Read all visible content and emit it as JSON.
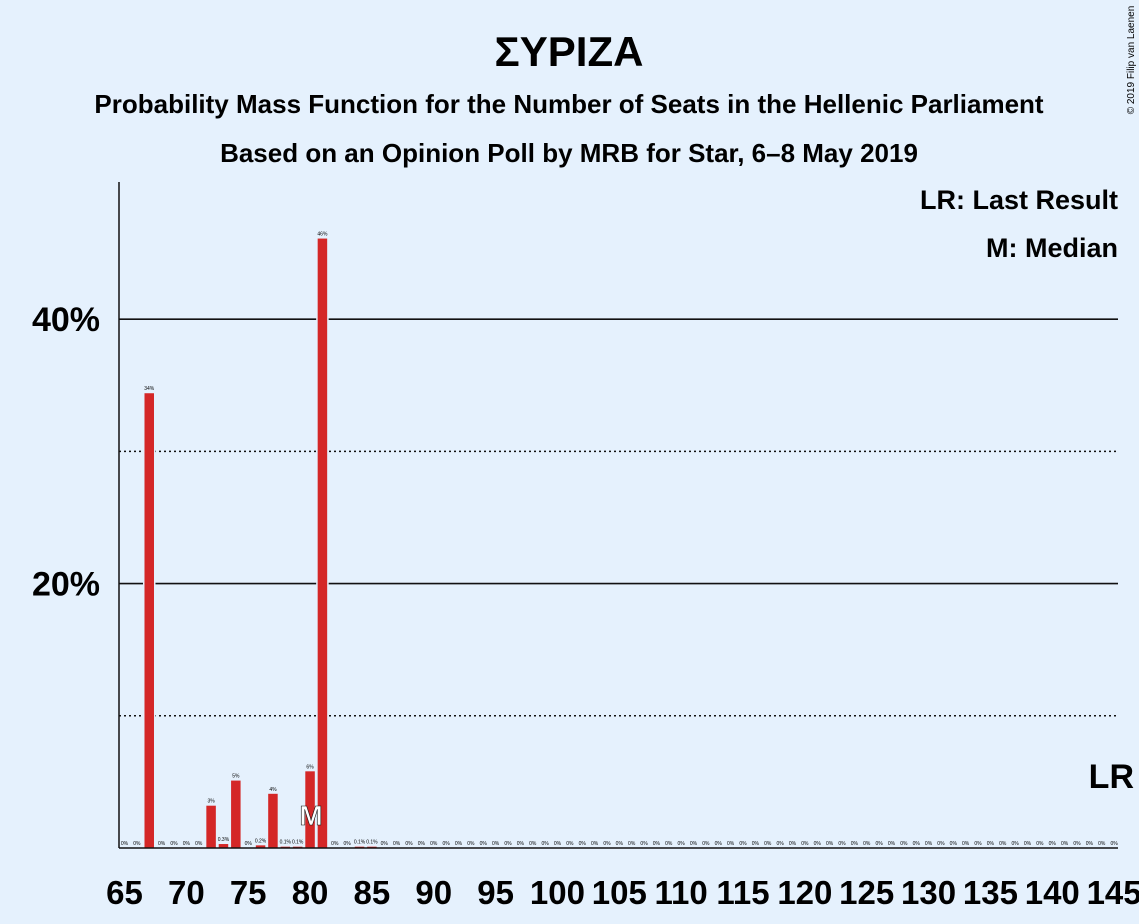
{
  "title": "ΣΥΡΙΖΑ",
  "subtitle1": "Probability Mass Function for the Number of Seats in the Hellenic Parliament",
  "subtitle2": "Based on an Opinion Poll by MRB for Star, 6–8 May 2019",
  "copyright": "© 2019 Filip van Laenen",
  "legend": {
    "lr": "LR: Last Result",
    "m": "M: Median"
  },
  "markers": {
    "last_result_label": "LR",
    "median_label": "M"
  },
  "colors": {
    "bar": "#d42727",
    "background": "#e5f1fd",
    "text": "#111111"
  },
  "chart_data": {
    "type": "bar",
    "xlabel": "",
    "ylabel": "",
    "xlim": [
      65,
      145
    ],
    "ylim": [
      0,
      50
    ],
    "y_ticks_labeled": [
      {
        "value": 20,
        "label": "20%"
      },
      {
        "value": 40,
        "label": "40%"
      }
    ],
    "y_gridlines_solid": [
      20,
      40
    ],
    "y_gridlines_dotted": [
      10,
      30
    ],
    "x_ticks": [
      {
        "value": 65,
        "label": "65"
      },
      {
        "value": 70,
        "label": "70"
      },
      {
        "value": 75,
        "label": "75"
      },
      {
        "value": 80,
        "label": "80"
      },
      {
        "value": 85,
        "label": "85"
      },
      {
        "value": 90,
        "label": "90"
      },
      {
        "value": 95,
        "label": "95"
      },
      {
        "value": 100,
        "label": "100"
      },
      {
        "value": 105,
        "label": "105"
      },
      {
        "value": 110,
        "label": "110"
      },
      {
        "value": 115,
        "label": "115"
      },
      {
        "value": 120,
        "label": "120"
      },
      {
        "value": 125,
        "label": "125"
      },
      {
        "value": 130,
        "label": "130"
      },
      {
        "value": 135,
        "label": "135"
      },
      {
        "value": 140,
        "label": "140"
      },
      {
        "value": 145,
        "label": "145"
      }
    ],
    "median": 80,
    "last_result": 145,
    "bars": [
      {
        "x": 65,
        "value": 0,
        "label": "0%"
      },
      {
        "x": 66,
        "value": 0,
        "label": "0%"
      },
      {
        "x": 67,
        "value": 34.4,
        "label": "34%"
      },
      {
        "x": 68,
        "value": 0,
        "label": "0%"
      },
      {
        "x": 69,
        "value": 0,
        "label": "0%"
      },
      {
        "x": 70,
        "value": 0,
        "label": "0%"
      },
      {
        "x": 71,
        "value": 0,
        "label": "0%"
      },
      {
        "x": 72,
        "value": 3.2,
        "label": "3%"
      },
      {
        "x": 73,
        "value": 0.3,
        "label": "0.3%"
      },
      {
        "x": 74,
        "value": 5.1,
        "label": "5%"
      },
      {
        "x": 75,
        "value": 0,
        "label": "0%"
      },
      {
        "x": 76,
        "value": 0.2,
        "label": "0.2%"
      },
      {
        "x": 77,
        "value": 4.1,
        "label": "4%"
      },
      {
        "x": 78,
        "value": 0.1,
        "label": "0.1%"
      },
      {
        "x": 79,
        "value": 0.1,
        "label": "0.1%"
      },
      {
        "x": 80,
        "value": 5.8,
        "label": "6%"
      },
      {
        "x": 81,
        "value": 46.1,
        "label": "46%"
      },
      {
        "x": 82,
        "value": 0,
        "label": "0%"
      },
      {
        "x": 83,
        "value": 0,
        "label": "0%"
      },
      {
        "x": 84,
        "value": 0.1,
        "label": "0.1%"
      },
      {
        "x": 85,
        "value": 0.1,
        "label": "0.1%"
      },
      {
        "x": 86,
        "value": 0,
        "label": "0%"
      },
      {
        "x": 87,
        "value": 0,
        "label": "0%"
      },
      {
        "x": 88,
        "value": 0,
        "label": "0%"
      },
      {
        "x": 89,
        "value": 0,
        "label": "0%"
      },
      {
        "x": 90,
        "value": 0,
        "label": "0%"
      },
      {
        "x": 91,
        "value": 0,
        "label": "0%"
      },
      {
        "x": 92,
        "value": 0,
        "label": "0%"
      },
      {
        "x": 93,
        "value": 0,
        "label": "0%"
      },
      {
        "x": 94,
        "value": 0,
        "label": "0%"
      },
      {
        "x": 95,
        "value": 0,
        "label": "0%"
      },
      {
        "x": 96,
        "value": 0,
        "label": "0%"
      },
      {
        "x": 97,
        "value": 0,
        "label": "0%"
      },
      {
        "x": 98,
        "value": 0,
        "label": "0%"
      },
      {
        "x": 99,
        "value": 0,
        "label": "0%"
      },
      {
        "x": 100,
        "value": 0,
        "label": "0%"
      },
      {
        "x": 101,
        "value": 0,
        "label": "0%"
      },
      {
        "x": 102,
        "value": 0,
        "label": "0%"
      },
      {
        "x": 103,
        "value": 0,
        "label": "0%"
      },
      {
        "x": 104,
        "value": 0,
        "label": "0%"
      },
      {
        "x": 105,
        "value": 0,
        "label": "0%"
      },
      {
        "x": 106,
        "value": 0,
        "label": "0%"
      },
      {
        "x": 107,
        "value": 0,
        "label": "0%"
      },
      {
        "x": 108,
        "value": 0,
        "label": "0%"
      },
      {
        "x": 109,
        "value": 0,
        "label": "0%"
      },
      {
        "x": 110,
        "value": 0,
        "label": "0%"
      },
      {
        "x": 111,
        "value": 0,
        "label": "0%"
      },
      {
        "x": 112,
        "value": 0,
        "label": "0%"
      },
      {
        "x": 113,
        "value": 0,
        "label": "0%"
      },
      {
        "x": 114,
        "value": 0,
        "label": "0%"
      },
      {
        "x": 115,
        "value": 0,
        "label": "0%"
      },
      {
        "x": 116,
        "value": 0,
        "label": "0%"
      },
      {
        "x": 117,
        "value": 0,
        "label": "0%"
      },
      {
        "x": 118,
        "value": 0,
        "label": "0%"
      },
      {
        "x": 119,
        "value": 0,
        "label": "0%"
      },
      {
        "x": 120,
        "value": 0,
        "label": "0%"
      },
      {
        "x": 121,
        "value": 0,
        "label": "0%"
      },
      {
        "x": 122,
        "value": 0,
        "label": "0%"
      },
      {
        "x": 123,
        "value": 0,
        "label": "0%"
      },
      {
        "x": 124,
        "value": 0,
        "label": "0%"
      },
      {
        "x": 125,
        "value": 0,
        "label": "0%"
      },
      {
        "x": 126,
        "value": 0,
        "label": "0%"
      },
      {
        "x": 127,
        "value": 0,
        "label": "0%"
      },
      {
        "x": 128,
        "value": 0,
        "label": "0%"
      },
      {
        "x": 129,
        "value": 0,
        "label": "0%"
      },
      {
        "x": 130,
        "value": 0,
        "label": "0%"
      },
      {
        "x": 131,
        "value": 0,
        "label": "0%"
      },
      {
        "x": 132,
        "value": 0,
        "label": "0%"
      },
      {
        "x": 133,
        "value": 0,
        "label": "0%"
      },
      {
        "x": 134,
        "value": 0,
        "label": "0%"
      },
      {
        "x": 135,
        "value": 0,
        "label": "0%"
      },
      {
        "x": 136,
        "value": 0,
        "label": "0%"
      },
      {
        "x": 137,
        "value": 0,
        "label": "0%"
      },
      {
        "x": 138,
        "value": 0,
        "label": "0%"
      },
      {
        "x": 139,
        "value": 0,
        "label": "0%"
      },
      {
        "x": 140,
        "value": 0,
        "label": "0%"
      },
      {
        "x": 141,
        "value": 0,
        "label": "0%"
      },
      {
        "x": 142,
        "value": 0,
        "label": "0%"
      },
      {
        "x": 143,
        "value": 0,
        "label": "0%"
      },
      {
        "x": 144,
        "value": 0,
        "label": "0%"
      },
      {
        "x": 145,
        "value": 0,
        "label": "0%"
      }
    ]
  }
}
